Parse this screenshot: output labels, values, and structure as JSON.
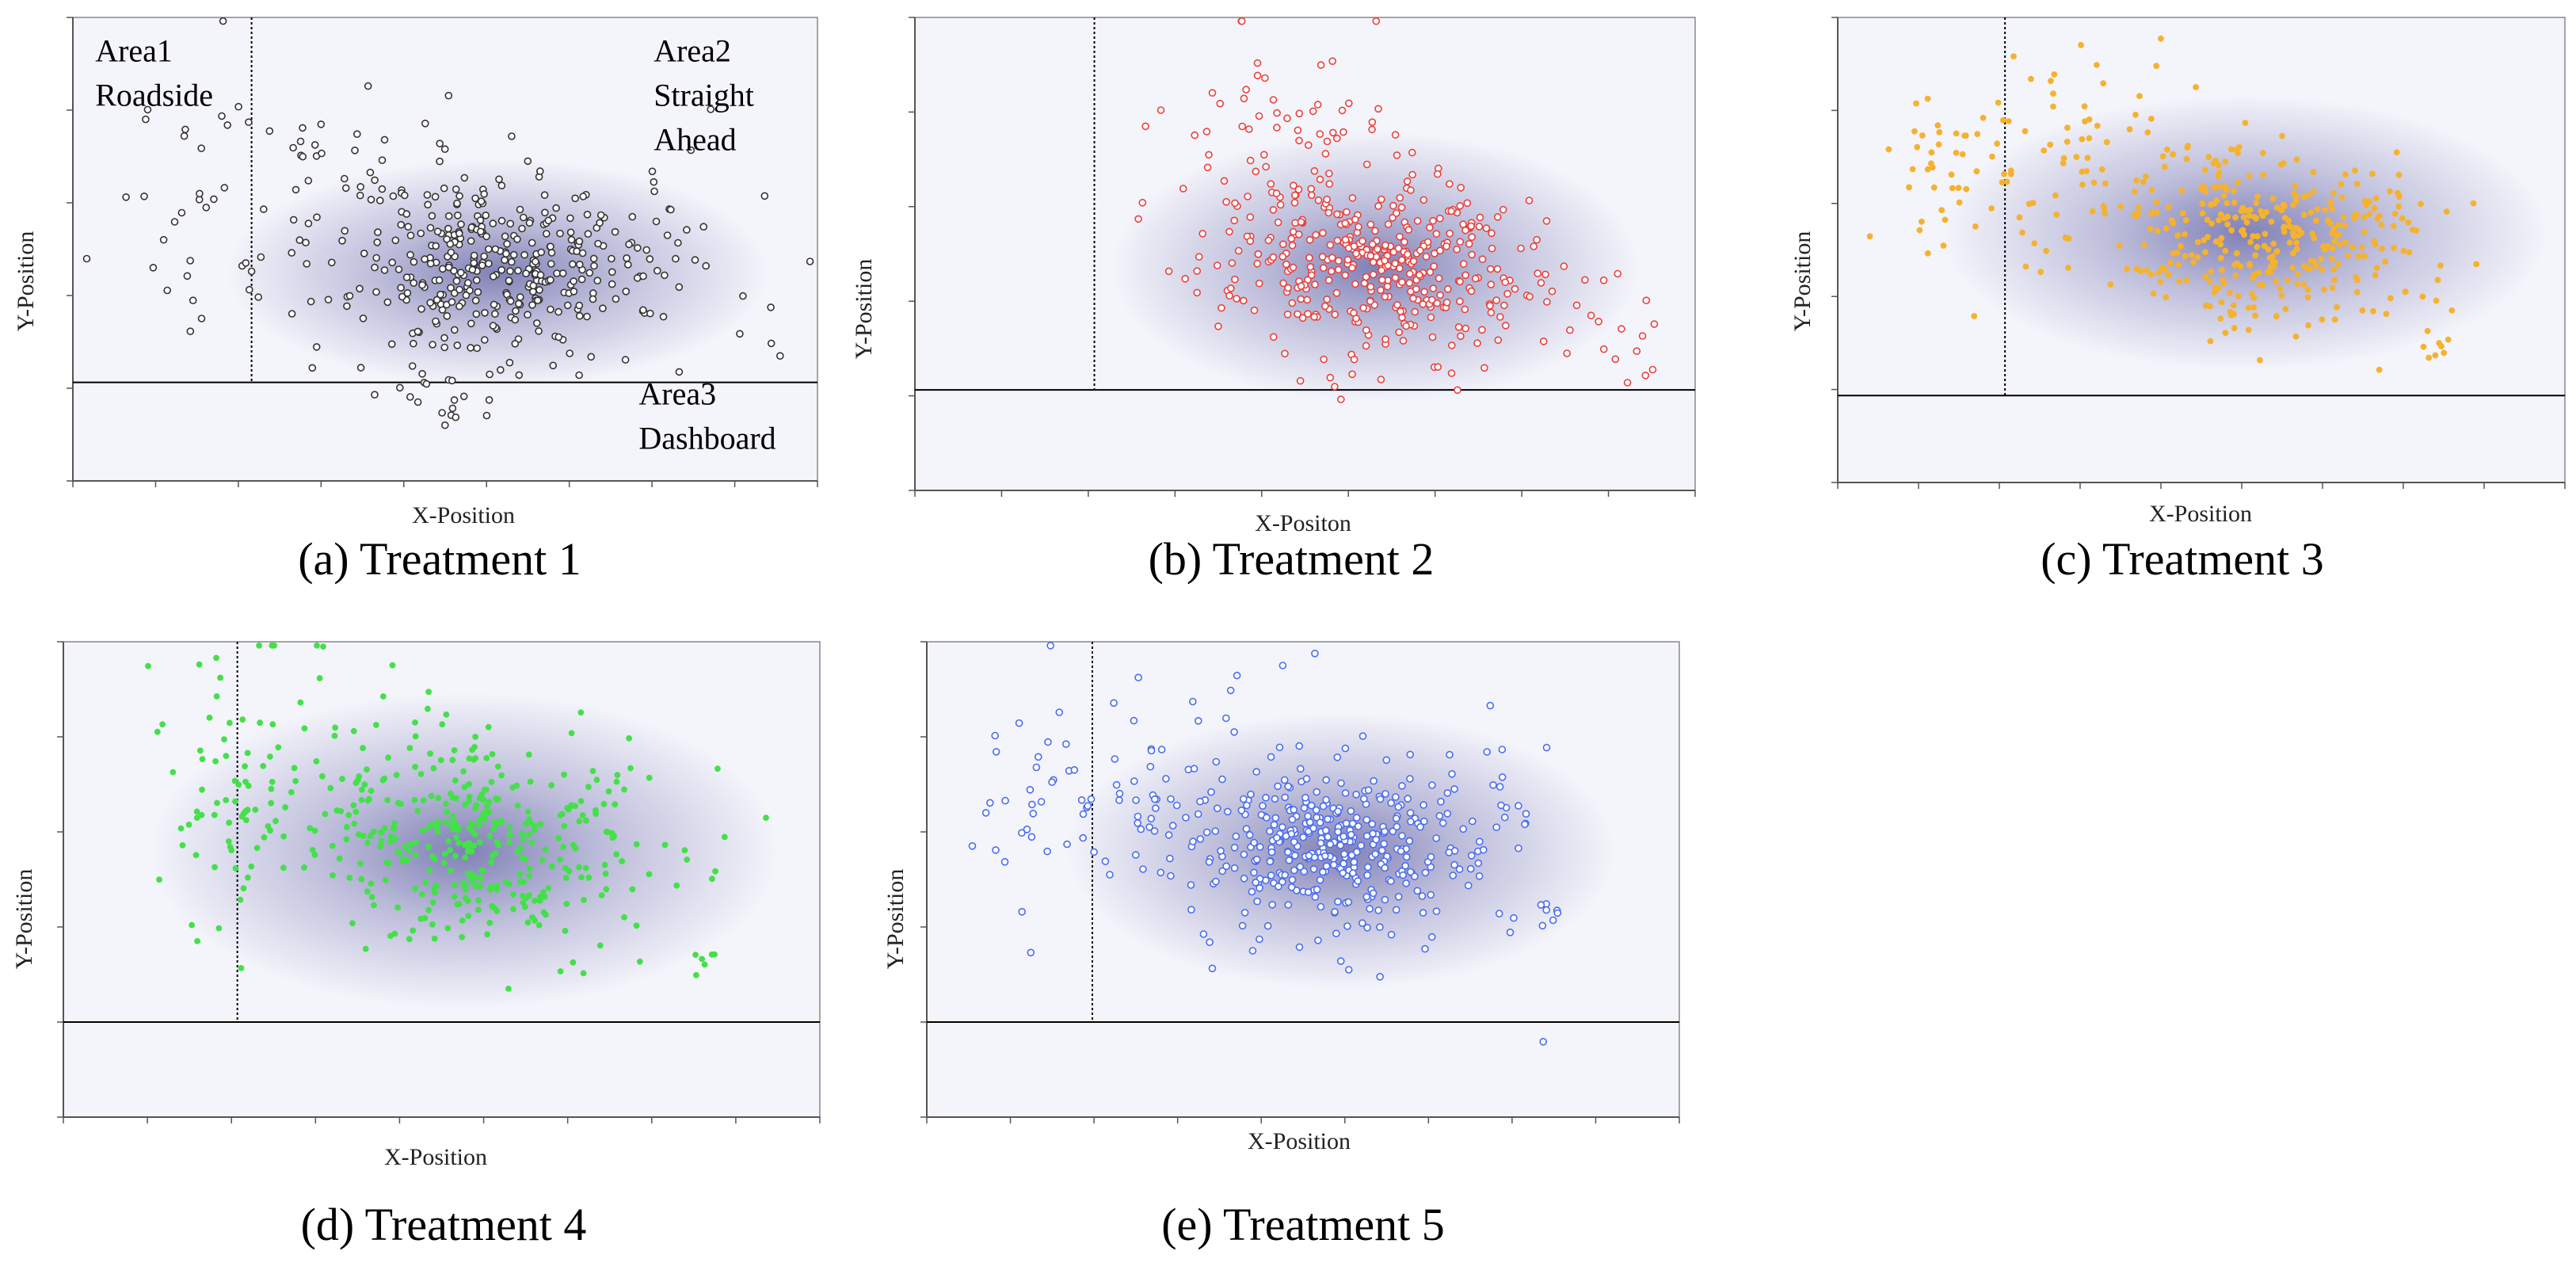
{
  "figure": {
    "colors": {
      "plot_background": "#f4f4fb",
      "density": "#5a5aa0",
      "divider": "#000000",
      "frame": "#888888"
    }
  },
  "chart_data": [
    {
      "id": "t1",
      "type": "scatter",
      "caption": "(a) Treatment 1",
      "xlabel": "X-Position",
      "ylabel": "Y-Position",
      "xlim": [
        0,
        100
      ],
      "ylim": [
        -27,
        100
      ],
      "area_divider_x": 24,
      "area_divider_y": 0,
      "marker": {
        "style": "hollow",
        "color": "#333333"
      },
      "x_ticks": 9,
      "y_ticks": 5,
      "density": {
        "cx": 57,
        "cy": 30,
        "sx": 14,
        "sy": 12
      },
      "annotations": [
        {
          "id": "area1",
          "lines": [
            "Area1",
            "Roadside"
          ],
          "x": 3,
          "y": 88,
          "anchor": "start"
        },
        {
          "id": "area2",
          "lines": [
            "Area2",
            "Straight",
            "Ahead"
          ],
          "x": 78,
          "y": 88,
          "anchor": "start"
        },
        {
          "id": "area3",
          "lines": [
            "Area3",
            "Dashboard"
          ],
          "x": 76,
          "y": -6,
          "anchor": "start"
        }
      ],
      "clusters": [
        {
          "n": 300,
          "cx": 57,
          "cy": 32,
          "sx": 9,
          "sy": 13
        },
        {
          "n": 75,
          "cx": 38,
          "cy": 45,
          "sx": 10,
          "sy": 20
        },
        {
          "n": 40,
          "cx": 74,
          "cy": 38,
          "sx": 9,
          "sy": 14
        },
        {
          "n": 24,
          "cx": 15,
          "cy": 50,
          "sx": 5,
          "sy": 22
        },
        {
          "n": 16,
          "cx": 47,
          "cy": -3,
          "sx": 6,
          "sy": 4
        },
        {
          "n": 8,
          "cx": 90,
          "cy": 30,
          "sx": 5,
          "sy": 14
        }
      ],
      "seed": 11
    },
    {
      "id": "t2",
      "type": "scatter",
      "caption": "(b) Treatment 2",
      "xlabel": "X-Positon",
      "ylabel": "Y-Position",
      "xlim": [
        0,
        100
      ],
      "ylim": [
        -27,
        100
      ],
      "area_divider_x": 23,
      "area_divider_y": 0,
      "marker": {
        "style": "hollow",
        "color": "#e8413c"
      },
      "x_ticks": 9,
      "y_ticks": 5,
      "density": {
        "cx": 59,
        "cy": 33,
        "sx": 13,
        "sy": 14
      },
      "annotations": [],
      "clusters": [
        {
          "n": 330,
          "cx": 59,
          "cy": 33,
          "sx": 9,
          "sy": 12
        },
        {
          "n": 90,
          "cx": 45,
          "cy": 60,
          "sx": 8,
          "sy": 18
        },
        {
          "n": 30,
          "cx": 78,
          "cy": 22,
          "sx": 8,
          "sy": 10
        },
        {
          "n": 10,
          "cx": 92,
          "cy": 14,
          "sx": 3,
          "sy": 8
        }
      ],
      "seed": 23
    },
    {
      "id": "t3",
      "type": "scatter",
      "caption": "(c) Treatment 3",
      "xlabel": "X-Position",
      "ylabel": "Y-Position",
      "xlim": [
        0,
        100
      ],
      "ylim": [
        -23,
        100
      ],
      "area_divider_x": 23,
      "area_divider_y": 0,
      "marker": {
        "style": "filled",
        "color": "#f5b230"
      },
      "x_ticks": 9,
      "y_ticks": 5,
      "density": {
        "cx": 56,
        "cy": 43,
        "sx": 16,
        "sy": 14
      },
      "annotations": [],
      "clusters": [
        {
          "n": 320,
          "cx": 58,
          "cy": 43,
          "sx": 9,
          "sy": 12
        },
        {
          "n": 85,
          "cx": 33,
          "cy": 62,
          "sx": 10,
          "sy": 14
        },
        {
          "n": 30,
          "cx": 14,
          "cy": 65,
          "sx": 5,
          "sy": 12
        },
        {
          "n": 24,
          "cx": 80,
          "cy": 42,
          "sx": 5,
          "sy": 12
        },
        {
          "n": 8,
          "cx": 83,
          "cy": 12,
          "sx": 2,
          "sy": 3
        }
      ],
      "seed": 37
    },
    {
      "id": "t4",
      "type": "scatter",
      "caption": "(d) Treatment 4",
      "xlabel": "X-Position",
      "ylabel": "Y-Position",
      "xlim": [
        0,
        100
      ],
      "ylim": [
        -25,
        100
      ],
      "area_divider_x": 23,
      "area_divider_y": 0,
      "marker": {
        "style": "filled",
        "color": "#44e04a"
      },
      "x_ticks": 9,
      "y_ticks": 5,
      "density": {
        "cx": 53,
        "cy": 45,
        "sx": 16,
        "sy": 16
      },
      "annotations": [],
      "clusters": [
        {
          "n": 300,
          "cx": 56,
          "cy": 46,
          "sx": 10,
          "sy": 13
        },
        {
          "n": 95,
          "cx": 34,
          "cy": 65,
          "sx": 10,
          "sy": 18
        },
        {
          "n": 40,
          "cx": 20,
          "cy": 55,
          "sx": 4,
          "sy": 20
        },
        {
          "n": 25,
          "cx": 73,
          "cy": 48,
          "sx": 8,
          "sy": 14
        },
        {
          "n": 6,
          "cx": 84,
          "cy": 14,
          "sx": 2,
          "sy": 3
        }
      ],
      "seed": 41
    },
    {
      "id": "t5",
      "type": "scatter",
      "caption": "(e) Treatment 5",
      "xlabel": "X-Position",
      "ylabel": "Y-Position",
      "xlim": [
        0,
        100
      ],
      "ylim": [
        -25,
        100
      ],
      "area_divider_x": 22,
      "area_divider_y": 0,
      "marker": {
        "style": "hollow",
        "color": "#4a6cf0"
      },
      "x_ticks": 9,
      "y_ticks": 5,
      "density": {
        "cx": 55,
        "cy": 45,
        "sx": 14,
        "sy": 14
      },
      "annotations": [],
      "clusters": [
        {
          "n": 320,
          "cx": 55,
          "cy": 45,
          "sx": 9,
          "sy": 11
        },
        {
          "n": 80,
          "cx": 35,
          "cy": 55,
          "sx": 9,
          "sy": 16
        },
        {
          "n": 30,
          "cx": 14,
          "cy": 60,
          "sx": 4,
          "sy": 16
        },
        {
          "n": 30,
          "cx": 72,
          "cy": 55,
          "sx": 6,
          "sy": 14
        },
        {
          "n": 10,
          "cx": 83,
          "cy": 30,
          "sx": 3,
          "sy": 4
        },
        {
          "n": 1,
          "cx": 82,
          "cy": -5,
          "sx": 0.1,
          "sy": 0.1
        }
      ],
      "seed": 53
    }
  ]
}
